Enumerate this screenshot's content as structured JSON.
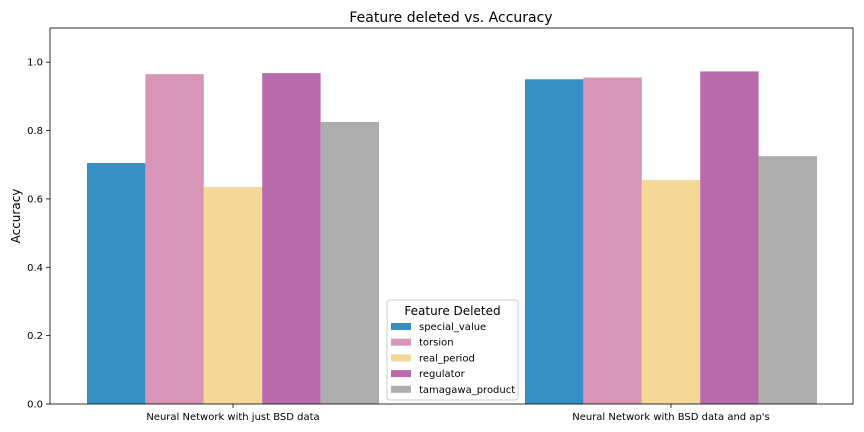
{
  "chart_data": {
    "type": "bar",
    "title": "Feature deleted vs. Accuracy",
    "xlabel": "",
    "ylabel": "Accuracy",
    "ylim": [
      0,
      1.1
    ],
    "yticks": [
      0.0,
      0.2,
      0.4,
      0.6,
      0.8,
      1.0
    ],
    "ytick_labels": [
      "0.0",
      "0.2",
      "0.4",
      "0.6",
      "0.8",
      "1.0"
    ],
    "categories": [
      "Neural Network with just BSD data",
      "Neural Network with BSD data and ap's"
    ],
    "series": [
      {
        "name": "special_value",
        "color": "#3790c3",
        "values": [
          0.705,
          0.95
        ]
      },
      {
        "name": "torsion",
        "color": "#d795b8",
        "values": [
          0.965,
          0.955
        ]
      },
      {
        "name": "real_period",
        "color": "#f4d898",
        "values": [
          0.635,
          0.655
        ]
      },
      {
        "name": "regulator",
        "color": "#b96aab",
        "values": [
          0.968,
          0.973
        ]
      },
      {
        "name": "tamagawa_product",
        "color": "#adadad",
        "values": [
          0.825,
          0.725
        ]
      }
    ],
    "legend": {
      "title": "Feature Deleted",
      "placement": "bottom-center"
    },
    "grid": false
  }
}
